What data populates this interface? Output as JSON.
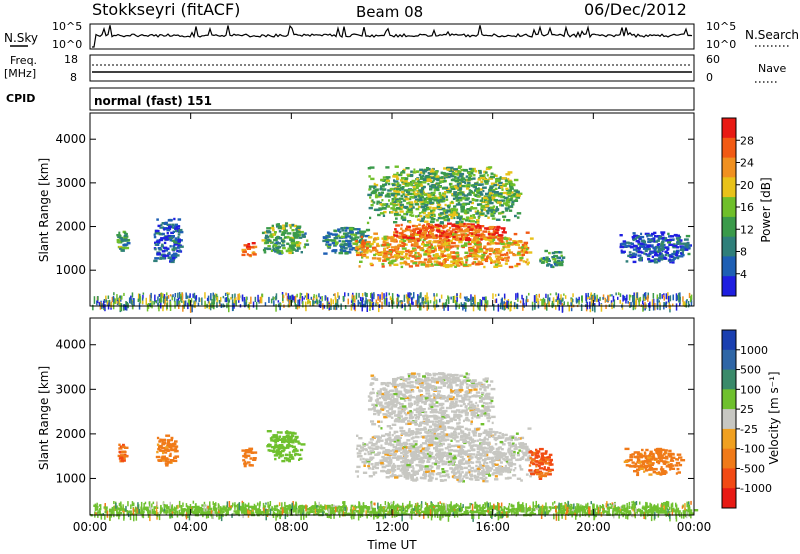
{
  "header": {
    "station": "Stokkseyri (fitACF)",
    "beam": "Beam 08",
    "date": "06/Dec/2012"
  },
  "status_rows": {
    "nsky": {
      "label": "N.Sky",
      "ymin": "10^0",
      "ymax": "10^5"
    },
    "nsearch": {
      "label": "N.Search",
      "ymin": "10^0",
      "ymax": "10^5"
    },
    "freq": {
      "label_top": "Freq.",
      "label_bottom": "[MHz]",
      "ymin": "8",
      "ymax": "18"
    },
    "nave": {
      "label": "Nave",
      "ymin": "0",
      "ymax": "60"
    },
    "cpid": {
      "label": "CPID",
      "value": "normal (fast) 151"
    }
  },
  "colors": {
    "power_scale": [
      "#1f1fe0",
      "#1e5fb4",
      "#2f7f7a",
      "#3a9a4a",
      "#6fbf2a",
      "#e8c21a",
      "#f09020",
      "#f25a14",
      "#e81a14"
    ],
    "velocity_scale": [
      "#1a3fb0",
      "#2f66a6",
      "#3a8a6a",
      "#6fc02e",
      "#c7c7c2",
      "#f0a020",
      "#f07a18",
      "#f24a14",
      "#e81a14"
    ]
  },
  "chart_data": [
    {
      "type": "heatmap",
      "panel": "power",
      "xlabel": "",
      "ylabel": "Slant Range [km]",
      "x_ticks": [
        "00:00",
        "04:00",
        "08:00",
        "12:00",
        "16:00",
        "20:00",
        "00:00"
      ],
      "y_ticks": [
        1000,
        2000,
        3000,
        4000
      ],
      "xlim": [
        0,
        24
      ],
      "ylim": [
        180,
        4600
      ],
      "colorbar": {
        "label": "Power [dB]",
        "ticks": [
          4,
          8,
          12,
          16,
          20,
          24,
          28
        ],
        "range": [
          0,
          32
        ]
      },
      "regions": [
        {
          "t0": 1.0,
          "t1": 1.5,
          "r0": 1450,
          "r1": 1950,
          "value": 12
        },
        {
          "t0": 2.5,
          "t1": 3.6,
          "r0": 1200,
          "r1": 2200,
          "value": 6
        },
        {
          "t0": 6.0,
          "t1": 6.5,
          "r0": 1300,
          "r1": 1650,
          "value": 24
        },
        {
          "t0": 6.8,
          "t1": 8.6,
          "r0": 1400,
          "r1": 2100,
          "value": 13
        },
        {
          "t0": 9.2,
          "t1": 11.0,
          "r0": 1400,
          "r1": 2000,
          "value": 10
        },
        {
          "t0": 10.5,
          "t1": 17.5,
          "r0": 1100,
          "r1": 1900,
          "value": 22
        },
        {
          "t0": 12.0,
          "t1": 16.5,
          "r0": 1700,
          "r1": 2100,
          "value": 27
        },
        {
          "t0": 11.0,
          "t1": 17.0,
          "r0": 2100,
          "r1": 3400,
          "value": 14
        },
        {
          "t0": 17.8,
          "t1": 18.8,
          "r0": 1100,
          "r1": 1500,
          "value": 12
        },
        {
          "t0": 21.0,
          "t1": 23.8,
          "r0": 1200,
          "r1": 1900,
          "value": 5
        }
      ]
    },
    {
      "type": "heatmap",
      "panel": "velocity",
      "xlabel": "Time UT",
      "ylabel": "Slant Range [km]",
      "x_ticks": [
        "00:00",
        "04:00",
        "08:00",
        "12:00",
        "16:00",
        "20:00",
        "00:00"
      ],
      "y_ticks": [
        1000,
        2000,
        3000,
        4000
      ],
      "xlim": [
        0,
        24
      ],
      "ylim": [
        180,
        4600
      ],
      "colorbar": {
        "label": "Velocity [m s⁻¹]",
        "ticks": [
          "1000",
          "500",
          "100",
          "25",
          "-25",
          "-100",
          "-500",
          "-1000"
        ]
      },
      "regions": [
        {
          "t0": 1.0,
          "t1": 1.4,
          "r0": 1400,
          "r1": 1800,
          "value": -300
        },
        {
          "t0": 2.6,
          "t1": 3.4,
          "r0": 1300,
          "r1": 2000,
          "value": -150
        },
        {
          "t0": 6.0,
          "t1": 6.5,
          "r0": 1300,
          "r1": 1700,
          "value": -200
        },
        {
          "t0": 7.0,
          "t1": 8.4,
          "r0": 1400,
          "r1": 2100,
          "value": 60
        },
        {
          "t0": 10.5,
          "t1": 17.5,
          "r0": 950,
          "r1": 2200,
          "value": 0
        },
        {
          "t0": 11.0,
          "t1": 16.0,
          "r0": 2200,
          "r1": 3400,
          "value": 0
        },
        {
          "t0": 17.4,
          "t1": 18.3,
          "r0": 1000,
          "r1": 1700,
          "value": -350
        },
        {
          "t0": 21.2,
          "t1": 23.5,
          "r0": 1100,
          "r1": 1700,
          "value": -150
        },
        {
          "t0": 0.0,
          "t1": 24.0,
          "r0": 200,
          "r1": 420,
          "value": 40
        }
      ]
    }
  ]
}
